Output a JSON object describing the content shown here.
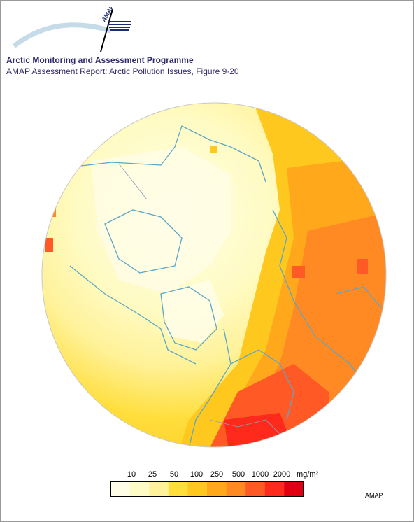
{
  "header": {
    "logo_text": "AMAP",
    "title": "Arctic Monitoring and Assessment Programme",
    "subtitle": "AMAP Assessment Report: Arctic Pollution Issues, Figure 9·20"
  },
  "colors": {
    "land_outline": "#5aa6c8",
    "boundary": "#8aa0b8",
    "scale": [
      "#fffde6",
      "#fffbc4",
      "#fff29a",
      "#ffde3c",
      "#ffc81e",
      "#ffa81c",
      "#ff8a24",
      "#ff5a26",
      "#ff2a1c",
      "#e00010"
    ]
  },
  "legend": {
    "ticks": [
      "10",
      "25",
      "50",
      "100",
      "250",
      "500",
      "1000",
      "2000"
    ],
    "unit": "mg/m²"
  },
  "credit": "AMAP"
}
